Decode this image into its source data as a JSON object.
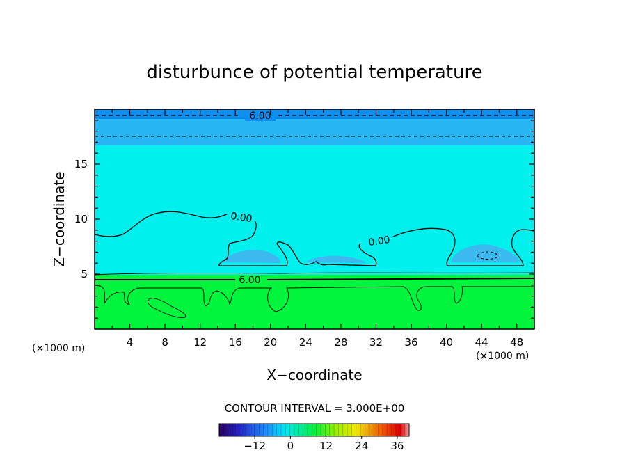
{
  "chart_data": {
    "type": "contour",
    "title": "disturbunce of potential temperature",
    "xlabel": "X−coordinate",
    "ylabel": "Z−coordinate",
    "x_unit": "(×1000 m)",
    "y_unit": "(×1000 m)",
    "xlim": [
      0,
      50
    ],
    "ylim": [
      0,
      20
    ],
    "xticks": [
      "4",
      "8",
      "12",
      "16",
      "20",
      "24",
      "28",
      "32",
      "36",
      "40",
      "44",
      "48"
    ],
    "yticks": [
      "5",
      "10",
      "15"
    ],
    "contour_labels": [
      {
        "text": "6.00",
        "x": 19,
        "z": 19.3
      },
      {
        "text": "0.00",
        "x": 16.5,
        "z": 10.2
      },
      {
        "text": "0.00",
        "x": 30.5,
        "z": 8.1
      },
      {
        "text": "6.00",
        "x": 17.6,
        "z": 4.5
      }
    ],
    "contour_interval": "CONTOUR INTERVAL = 3.000E+00",
    "colorbar": {
      "min": -24,
      "max": 40,
      "ticks": [
        "−12",
        "0",
        "12",
        "24",
        "36"
      ],
      "tick_values": [
        -12,
        0,
        12,
        24,
        36
      ]
    },
    "colors": {
      "top_band": "#0d8ff2",
      "upper_band": "#27b6f3",
      "middle": "#00f0ee",
      "blue_patch": "#3cbaf0",
      "lower": "#00f53c"
    }
  }
}
